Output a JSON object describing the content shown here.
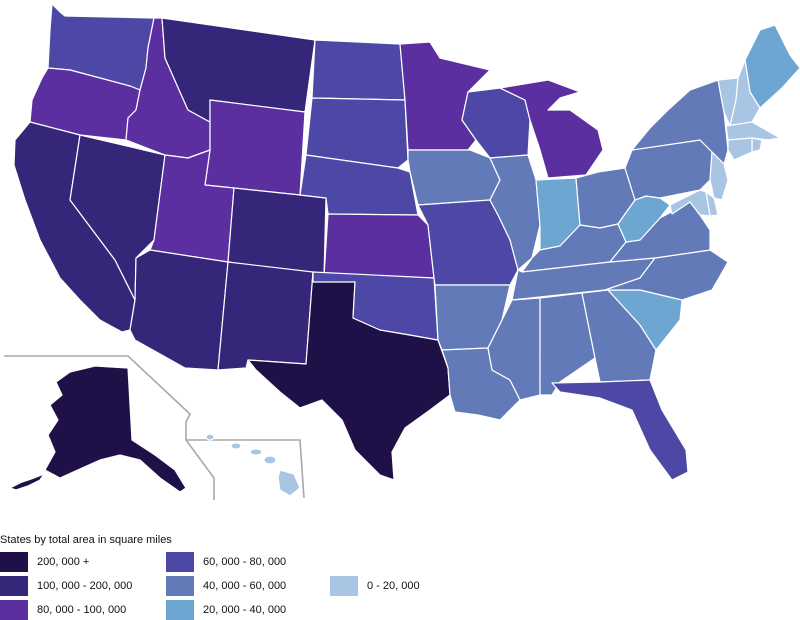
{
  "legend": {
    "title": "States by total area in square miles",
    "items": [
      {
        "label": "200, 000 +",
        "color": "#1f1147"
      },
      {
        "label": "100, 000 - 200, 000",
        "color": "#352679"
      },
      {
        "label": "80, 000 - 100, 000",
        "color": "#5b2fa0"
      },
      {
        "label": "60, 000 - 80, 000",
        "color": "#4d48a6"
      },
      {
        "label": "40, 000 - 60, 000",
        "color": "#627ab7"
      },
      {
        "label": "20, 000 - 40, 000",
        "color": "#6ca6d1"
      },
      {
        "label": "0 - 20, 000",
        "color": "#a9c5e4"
      }
    ]
  },
  "states": [
    {
      "name": "Washington",
      "class": 3
    },
    {
      "name": "Oregon",
      "class": 2
    },
    {
      "name": "California",
      "class": 1
    },
    {
      "name": "Nevada",
      "class": 1
    },
    {
      "name": "Idaho",
      "class": 2
    },
    {
      "name": "Montana",
      "class": 1
    },
    {
      "name": "Wyoming",
      "class": 2
    },
    {
      "name": "Utah",
      "class": 2
    },
    {
      "name": "Arizona",
      "class": 1
    },
    {
      "name": "Colorado",
      "class": 1
    },
    {
      "name": "New Mexico",
      "class": 1
    },
    {
      "name": "Texas",
      "class": 0
    },
    {
      "name": "North Dakota",
      "class": 3
    },
    {
      "name": "South Dakota",
      "class": 3
    },
    {
      "name": "Nebraska",
      "class": 3
    },
    {
      "name": "Kansas",
      "class": 2
    },
    {
      "name": "Oklahoma",
      "class": 3
    },
    {
      "name": "Minnesota",
      "class": 2
    },
    {
      "name": "Iowa",
      "class": 4
    },
    {
      "name": "Missouri",
      "class": 3
    },
    {
      "name": "Arkansas",
      "class": 4
    },
    {
      "name": "Louisiana",
      "class": 4
    },
    {
      "name": "Wisconsin",
      "class": 3
    },
    {
      "name": "Illinois",
      "class": 4
    },
    {
      "name": "Michigan",
      "class": 2
    },
    {
      "name": "Indiana",
      "class": 5
    },
    {
      "name": "Ohio",
      "class": 4
    },
    {
      "name": "Kentucky",
      "class": 4
    },
    {
      "name": "Tennessee",
      "class": 4
    },
    {
      "name": "Mississippi",
      "class": 4
    },
    {
      "name": "Alabama",
      "class": 4
    },
    {
      "name": "Georgia",
      "class": 4
    },
    {
      "name": "Florida",
      "class": 3
    },
    {
      "name": "South Carolina",
      "class": 5
    },
    {
      "name": "North Carolina",
      "class": 4
    },
    {
      "name": "Virginia",
      "class": 4
    },
    {
      "name": "West Virginia",
      "class": 5
    },
    {
      "name": "Pennsylvania",
      "class": 4
    },
    {
      "name": "New York",
      "class": 4
    },
    {
      "name": "Maine",
      "class": 5
    },
    {
      "name": "Vermont",
      "class": 6
    },
    {
      "name": "New Hampshire",
      "class": 6
    },
    {
      "name": "Massachusetts",
      "class": 6
    },
    {
      "name": "Rhode Island",
      "class": 6
    },
    {
      "name": "Connecticut",
      "class": 6
    },
    {
      "name": "New Jersey",
      "class": 6
    },
    {
      "name": "Delaware",
      "class": 6
    },
    {
      "name": "Maryland",
      "class": 6
    },
    {
      "name": "Alaska",
      "class": 0
    },
    {
      "name": "Hawaii",
      "class": 6
    }
  ]
}
